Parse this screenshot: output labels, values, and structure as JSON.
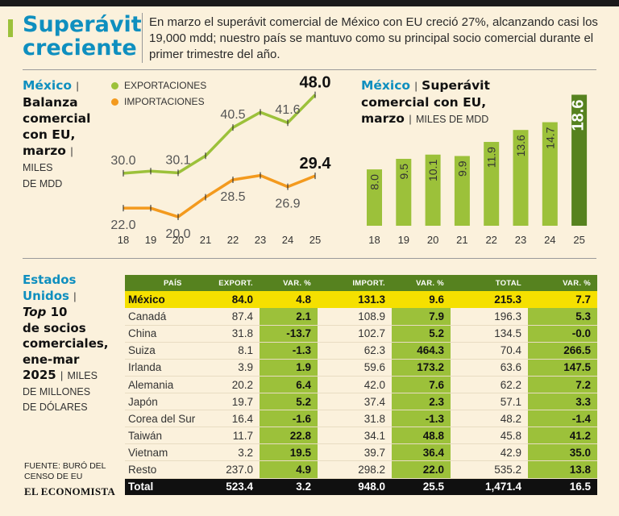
{
  "header": {
    "title_line1": "Superávit",
    "title_line2": "creciente",
    "lede": "En marzo el superávit comercial de México con EU creció 27%, alcanzando casi los 19,000 mdd; nuestro país se mantuvo como su principal socio comercial durante el primer trimestre del año."
  },
  "left_panel": {
    "country": "México",
    "sep": "|",
    "title_l1": "Balanza",
    "title_l2": "comercial",
    "title_l3": "con EU,",
    "title_l4": "marzo",
    "units_l1": "MILES",
    "units_l2": "DE MDD",
    "legend_exp": "EXPORTACIONES",
    "legend_imp": "IMPORTACIONES"
  },
  "right_panel": {
    "country": "México",
    "sep": "|",
    "title_l1": "Superávit",
    "title_l2": "comercial con EU,",
    "title_l3": "marzo",
    "units": "MILES DE MDD"
  },
  "table_panel": {
    "title_l1": "Estados",
    "title_l2": "Unidos",
    "title_l3": "Top",
    "title_l3b": "10",
    "title_l4": "de socios",
    "title_l5": "comerciales,",
    "title_l6": "ene-mar",
    "title_l7": "2025",
    "units_l1": "MILES",
    "units_l2": "DE MILLONES",
    "units_l3": "DE DÓLARES"
  },
  "footer": {
    "source_l1": "FUENTE: BURÓ DEL",
    "source_l2": "CENSO DE EU",
    "brand": "EL ECONOMISTA"
  },
  "colors": {
    "accent_blue": "#0f8fbf",
    "export_green": "#9cc13a",
    "import_orange": "#f39a1e",
    "bar_green": "#9cc13a",
    "bar_highlight": "#56821f",
    "mexico_row": "#f5e000"
  },
  "chart_data": [
    {
      "type": "line",
      "x": [
        "18",
        "19",
        "20",
        "21",
        "22",
        "23",
        "24",
        "25"
      ],
      "series": [
        {
          "name": "EXPORTACIONES",
          "values": [
            30.0,
            30.5,
            30.1,
            34.0,
            40.5,
            44.0,
            41.6,
            48.0
          ],
          "labels": [
            "30.0",
            "",
            "30.1",
            "",
            "40.5",
            "",
            "41.6",
            "48.0"
          ]
        },
        {
          "name": "IMPORTACIONES",
          "values": [
            22.0,
            22.0,
            20.0,
            24.5,
            28.5,
            29.5,
            26.9,
            29.4
          ],
          "labels": [
            "22.0",
            "",
            "20.0",
            "",
            "28.5",
            "",
            "26.9",
            "29.4"
          ]
        }
      ],
      "ylim": [
        15,
        52
      ]
    },
    {
      "type": "bar",
      "categories": [
        "18",
        "19",
        "20",
        "21",
        "22",
        "23",
        "24",
        "25"
      ],
      "values": [
        8.0,
        9.5,
        10.1,
        9.9,
        11.9,
        13.6,
        14.7,
        18.6
      ],
      "labels": [
        "8.0",
        "9.5",
        "10.1",
        "9.9",
        "11.9",
        "13.6",
        "14.7",
        "18.6"
      ],
      "ylim": [
        0,
        19
      ]
    },
    {
      "type": "table",
      "columns": [
        "PAÍS",
        "EXPORT.",
        "VAR. %",
        "IMPORT.",
        "VAR. %",
        "TOTAL",
        "VAR. %"
      ],
      "rows": [
        [
          "México",
          "84.0",
          "4.8",
          "131.3",
          "9.6",
          "215.3",
          "7.7"
        ],
        [
          "Canadá",
          "87.4",
          "2.1",
          "108.9",
          "7.9",
          "196.3",
          "5.3"
        ],
        [
          "China",
          "31.8",
          "-13.7",
          "102.7",
          "5.2",
          "134.5",
          "-0.0"
        ],
        [
          "Suiza",
          "8.1",
          "-1.3",
          "62.3",
          "464.3",
          "70.4",
          "266.5"
        ],
        [
          "Irlanda",
          "3.9",
          "1.9",
          "59.6",
          "173.2",
          "63.6",
          "147.5"
        ],
        [
          "Alemania",
          "20.2",
          "6.4",
          "42.0",
          "7.6",
          "62.2",
          "7.2"
        ],
        [
          "Japón",
          "19.7",
          "5.2",
          "37.4",
          "2.3",
          "57.1",
          "3.3"
        ],
        [
          "Corea del Sur",
          "16.4",
          "-1.6",
          "31.8",
          "-1.3",
          "48.2",
          "-1.4"
        ],
        [
          "Taiwán",
          "11.7",
          "22.8",
          "34.1",
          "48.8",
          "45.8",
          "41.2"
        ],
        [
          "Vietnam",
          "3.2",
          "19.5",
          "39.7",
          "36.4",
          "42.9",
          "35.0"
        ],
        [
          "Resto",
          "237.0",
          "4.9",
          "298.2",
          "22.0",
          "535.2",
          "13.8"
        ]
      ],
      "total": [
        "Total",
        "523.4",
        "3.2",
        "948.0",
        "25.5",
        "1,471.4",
        "16.5"
      ]
    }
  ]
}
